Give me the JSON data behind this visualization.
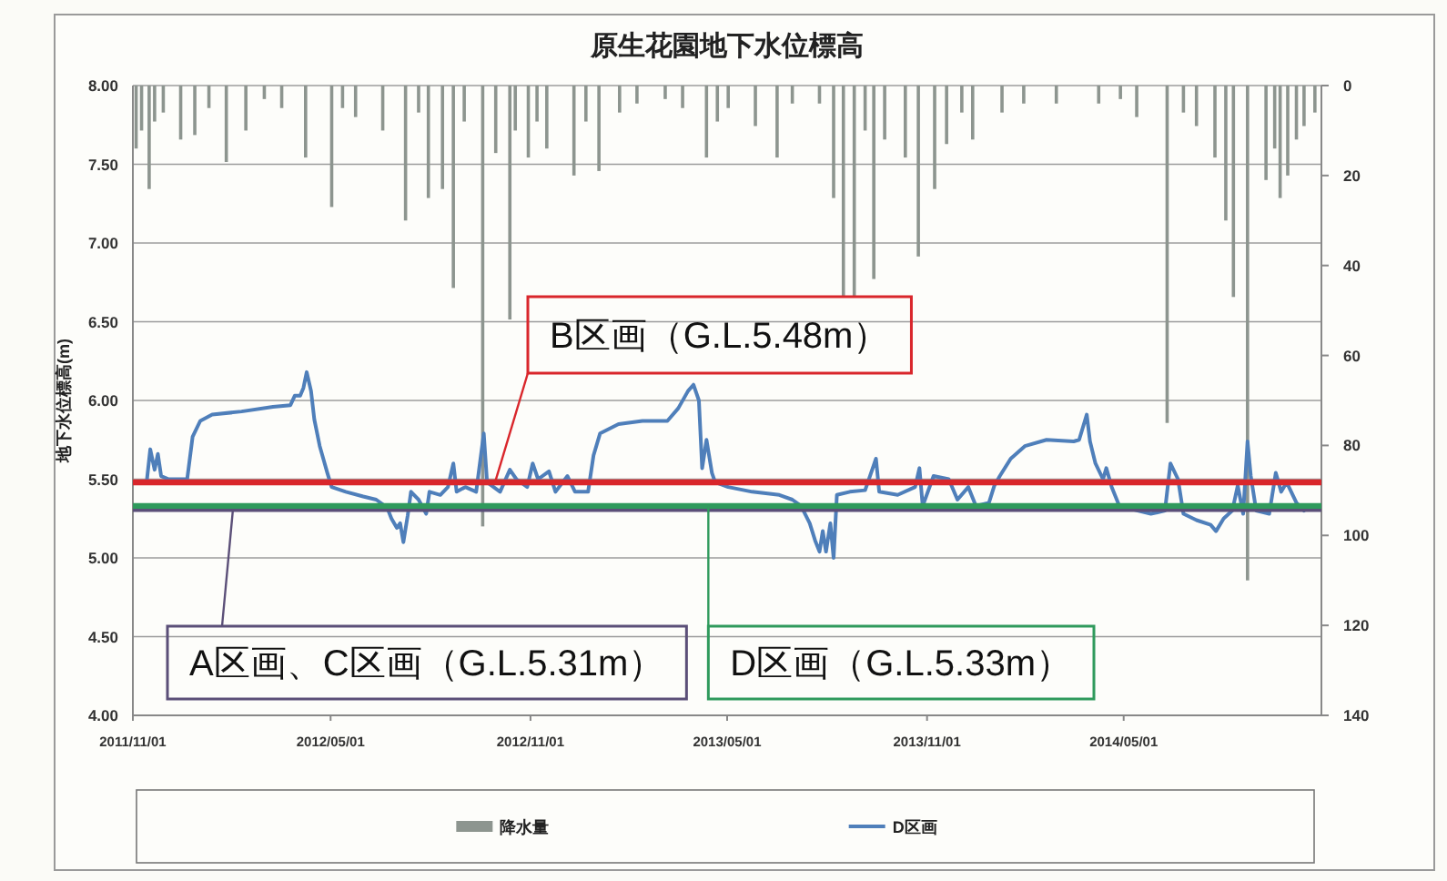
{
  "chart_data": {
    "type": "line",
    "title": "原生花園地下水位標高",
    "ylabel": "地下水位標高(m)",
    "xlim": [
      "2011-11-01",
      "2014-10-30"
    ],
    "xticks": [
      {
        "value": "2011-11-01",
        "label": "2011/11/01"
      },
      {
        "value": "2012-05-01",
        "label": "2012/05/01"
      },
      {
        "value": "2012-11-01",
        "label": "2012/11/01"
      },
      {
        "value": "2013-05-01",
        "label": "2013/05/01"
      },
      {
        "value": "2013-11-01",
        "label": "2013/11/01"
      },
      {
        "value": "2014-05-01",
        "label": "2014/05/01"
      }
    ],
    "ylim": [
      4,
      8
    ],
    "yticks": [
      {
        "value": 4,
        "label": "4.00"
      },
      {
        "value": 4.5,
        "label": "4.50"
      },
      {
        "value": 5,
        "label": "5.00"
      },
      {
        "value": 5.5,
        "label": "5.50"
      },
      {
        "value": 6,
        "label": "6.00"
      },
      {
        "value": 6.5,
        "label": "6.50"
      },
      {
        "value": 7,
        "label": "7.00"
      },
      {
        "value": 7.5,
        "label": "7.50"
      },
      {
        "value": 8,
        "label": "8.00"
      }
    ],
    "y2lim": [
      140,
      0
    ],
    "y2ticks": [
      0,
      20,
      40,
      60,
      80,
      100,
      120,
      140
    ],
    "grid": "y",
    "legend": "bottom",
    "series": [
      {
        "name": "降水量",
        "type": "bar",
        "axis": "y2",
        "color": "#8d958f",
        "x": [
          "2011-11-04",
          "2011-11-09",
          "2011-11-16",
          "2011-11-21",
          "2011-11-29",
          "2011-12-15",
          "2011-12-28",
          "2012-01-10",
          "2012-01-26",
          "2012-02-13",
          "2012-03-01",
          "2012-03-17",
          "2012-04-08",
          "2012-05-02",
          "2012-05-12",
          "2012-05-24",
          "2012-06-18",
          "2012-07-09",
          "2012-07-21",
          "2012-07-30",
          "2012-08-12",
          "2012-08-22",
          "2012-09-01",
          "2012-09-18",
          "2012-09-30",
          "2012-10-13",
          "2012-10-18",
          "2012-10-30",
          "2012-11-07",
          "2012-11-16",
          "2012-12-11",
          "2012-12-22",
          "2013-01-03",
          "2013-01-22",
          "2013-02-07",
          "2013-03-05",
          "2013-03-21",
          "2013-04-12",
          "2013-04-22",
          "2013-05-02",
          "2013-05-27",
          "2013-06-16",
          "2013-06-30",
          "2013-07-25",
          "2013-08-07",
          "2013-08-16",
          "2013-08-26",
          "2013-09-05",
          "2013-09-13",
          "2013-09-23",
          "2013-10-12",
          "2013-10-24",
          "2013-11-08",
          "2013-11-19",
          "2013-12-03",
          "2013-12-13",
          "2014-01-09",
          "2014-01-29",
          "2014-02-28",
          "2014-04-08",
          "2014-04-28",
          "2014-05-13",
          "2014-06-10",
          "2014-06-25",
          "2014-07-07",
          "2014-07-24",
          "2014-08-03",
          "2014-08-10",
          "2014-08-23",
          "2014-09-09",
          "2014-09-17",
          "2014-09-22",
          "2014-09-29",
          "2014-10-07",
          "2014-10-14",
          "2014-10-24"
        ],
        "values": [
          14,
          10,
          23,
          8,
          6,
          12,
          11,
          5,
          17,
          10,
          3,
          5,
          16,
          27,
          5,
          7,
          10,
          30,
          6,
          25,
          23,
          45,
          8,
          98,
          15,
          52,
          10,
          16,
          8,
          14,
          20,
          8,
          19,
          6,
          4,
          3,
          5,
          16,
          8,
          5,
          9,
          16,
          4,
          4,
          25,
          47,
          47,
          10,
          43,
          12,
          16,
          38,
          23,
          13,
          6,
          12,
          6,
          4,
          4,
          4,
          3,
          7,
          75,
          6,
          9,
          16,
          30,
          47,
          110,
          21,
          14,
          25,
          20,
          12,
          9,
          6
        ]
      },
      {
        "name": "D区画",
        "color": "#4f7fba",
        "x": [
          "2011-11-14",
          "2011-11-17",
          "2011-11-21",
          "2011-11-24",
          "2011-11-27",
          "2011-12-04",
          "2011-12-16",
          "2011-12-21",
          "2011-12-26",
          "2012-01-02",
          "2012-01-13",
          "2012-02-09",
          "2012-03-09",
          "2012-03-25",
          "2012-03-29",
          "2012-04-03",
          "2012-04-06",
          "2012-04-09",
          "2012-04-13",
          "2012-04-16",
          "2012-04-21",
          "2012-04-28",
          "2012-05-02",
          "2012-05-15",
          "2012-05-31",
          "2012-06-12",
          "2012-06-22",
          "2012-06-26",
          "2012-07-01",
          "2012-07-04",
          "2012-07-07",
          "2012-07-11",
          "2012-07-14",
          "2012-07-21",
          "2012-07-28",
          "2012-07-31",
          "2012-08-10",
          "2012-08-17",
          "2012-08-22",
          "2012-08-25",
          "2012-09-02",
          "2012-09-12",
          "2012-09-19",
          "2012-09-22",
          "2012-10-04",
          "2012-10-13",
          "2012-10-19",
          "2012-10-29",
          "2012-11-03",
          "2012-11-08",
          "2012-11-18",
          "2012-11-24",
          "2012-12-05",
          "2012-12-12",
          "2012-12-24",
          "2012-12-29",
          "2013-01-04",
          "2013-01-21",
          "2013-02-12",
          "2013-03-07",
          "2013-03-17",
          "2013-03-26",
          "2013-03-31",
          "2013-04-05",
          "2013-04-08",
          "2013-04-12",
          "2013-04-17",
          "2013-04-20",
          "2013-05-02",
          "2013-05-24",
          "2013-06-18",
          "2013-06-30",
          "2013-07-08",
          "2013-07-16",
          "2013-07-21",
          "2013-07-25",
          "2013-07-28",
          "2013-07-31",
          "2013-08-04",
          "2013-08-07",
          "2013-08-10",
          "2013-08-22",
          "2013-09-05",
          "2013-09-15",
          "2013-09-18",
          "2013-10-05",
          "2013-10-21",
          "2013-10-25",
          "2013-10-28",
          "2013-11-07",
          "2013-11-21",
          "2013-11-29",
          "2013-12-09",
          "2013-12-16",
          "2013-12-28",
          "2014-01-02",
          "2014-01-07",
          "2014-01-17",
          "2014-01-30",
          "2014-02-19",
          "2014-03-16",
          "2014-03-21",
          "2014-03-28",
          "2014-03-31",
          "2014-04-05",
          "2014-04-12",
          "2014-04-15",
          "2014-04-20",
          "2014-04-27",
          "2014-05-14",
          "2014-05-26",
          "2014-06-08",
          "2014-06-13",
          "2014-06-20",
          "2014-06-25",
          "2014-07-07",
          "2014-07-20",
          "2014-07-25",
          "2014-08-01",
          "2014-08-09",
          "2014-08-14",
          "2014-08-19",
          "2014-08-23",
          "2014-08-26",
          "2014-08-31",
          "2014-09-12",
          "2014-09-18",
          "2014-09-23",
          "2014-09-28",
          "2014-10-07",
          "2014-10-14"
        ],
        "values": [
          5.5,
          5.69,
          5.56,
          5.66,
          5.52,
          5.5,
          5.5,
          5.5,
          5.77,
          5.87,
          5.91,
          5.93,
          5.96,
          5.97,
          6.03,
          6.03,
          6.08,
          6.18,
          6.06,
          5.88,
          5.71,
          5.54,
          5.45,
          5.42,
          5.39,
          5.37,
          5.32,
          5.25,
          5.19,
          5.22,
          5.1,
          5.27,
          5.42,
          5.37,
          5.28,
          5.42,
          5.4,
          5.45,
          5.6,
          5.42,
          5.45,
          5.42,
          5.79,
          5.48,
          5.42,
          5.56,
          5.5,
          5.45,
          5.6,
          5.5,
          5.55,
          5.42,
          5.52,
          5.42,
          5.42,
          5.65,
          5.79,
          5.85,
          5.87,
          5.87,
          5.95,
          6.06,
          6.1,
          6.0,
          5.57,
          5.75,
          5.54,
          5.48,
          5.45,
          5.42,
          5.4,
          5.37,
          5.33,
          5.22,
          5.11,
          5.04,
          5.17,
          5.04,
          5.22,
          5.0,
          5.4,
          5.42,
          5.43,
          5.63,
          5.42,
          5.4,
          5.45,
          5.57,
          5.33,
          5.52,
          5.5,
          5.37,
          5.45,
          5.33,
          5.35,
          5.46,
          5.52,
          5.63,
          5.71,
          5.75,
          5.74,
          5.75,
          5.91,
          5.74,
          5.6,
          5.5,
          5.57,
          5.45,
          5.33,
          5.3,
          5.28,
          5.3,
          5.6,
          5.5,
          5.28,
          5.24,
          5.21,
          5.17,
          5.25,
          5.3,
          5.46,
          5.28,
          5.74,
          5.52,
          5.3,
          5.28,
          5.54,
          5.42,
          5.48,
          5.35,
          5.3
        ]
      }
    ],
    "ref_lines": [
      {
        "axis": "y",
        "value": 5.48,
        "label": "B区画（G.L.5.48m）",
        "color": "#d9262b"
      },
      {
        "axis": "y",
        "value": 5.31,
        "label": "A区画、C区画（G.L.5.31m）",
        "color": "#5b4f78"
      },
      {
        "axis": "y",
        "value": 5.33,
        "label": "D区画（G.L.5.33m）",
        "color": "#2f9a5c"
      }
    ]
  }
}
